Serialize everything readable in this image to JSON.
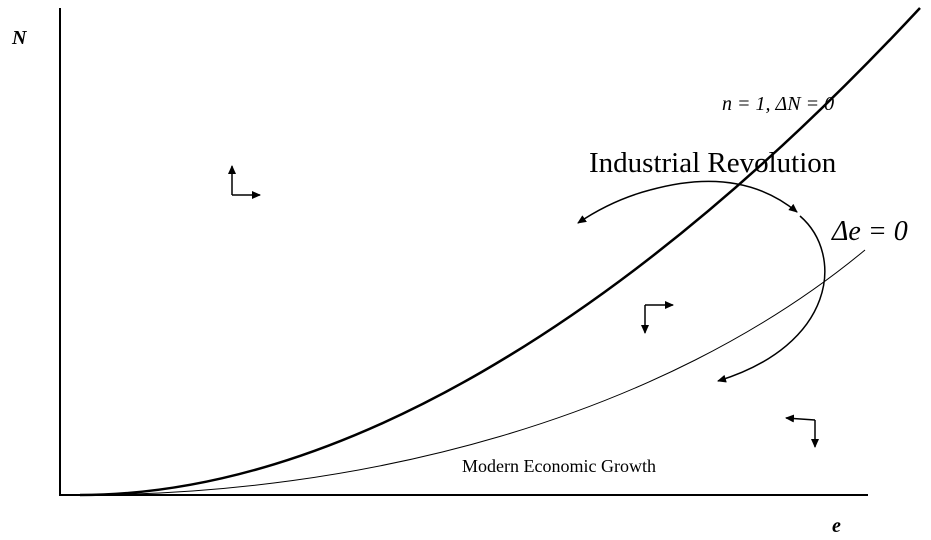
{
  "axes": {
    "y_label": "N",
    "x_label": "e"
  },
  "curves": {
    "n_curve_label": "n = 1, ΔN = 0",
    "e_curve_label": "Δe = 0"
  },
  "annotations": {
    "industrial": "Industrial Revolution",
    "modern": "Modern Economic Growth"
  }
}
